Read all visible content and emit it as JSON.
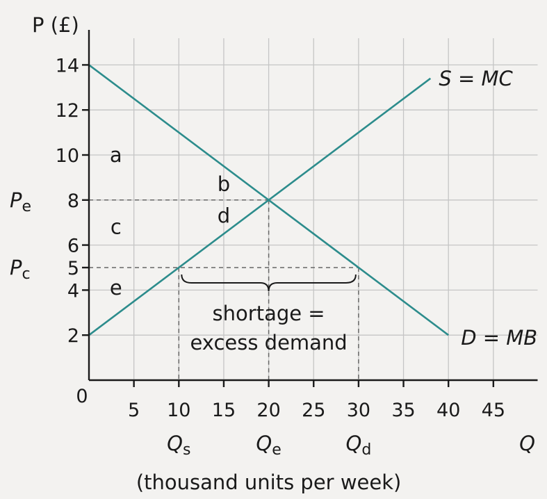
{
  "chart_data": {
    "type": "line",
    "ylabel": "P (£)",
    "xlabel": "(thousand units per week)",
    "x_axis_symbol": "Q",
    "xlim": [
      0,
      50
    ],
    "ylim": [
      0,
      15
    ],
    "x_ticks": [
      0,
      5,
      10,
      15,
      20,
      25,
      30,
      35,
      40,
      45
    ],
    "x_tick_labels": [
      "0",
      "5",
      "10",
      "15",
      "20",
      "25",
      "30",
      "35",
      "40",
      "45"
    ],
    "y_ticks": [
      2,
      4,
      5,
      6,
      8,
      10,
      12,
      14
    ],
    "y_tick_labels": [
      "2",
      "4",
      "5",
      "6",
      "8",
      "10",
      "12",
      "14"
    ],
    "grid": true,
    "series": [
      {
        "name": "S = MC",
        "color": "#2c8c8c",
        "x": [
          0,
          38
        ],
        "y": [
          2,
          13.4
        ]
      },
      {
        "name": "D = MB",
        "color": "#2c8c8c",
        "x": [
          0,
          40
        ],
        "y": [
          14,
          2
        ]
      }
    ],
    "price_markers": [
      {
        "label": "Pe",
        "main": "P",
        "sub": "e",
        "value": 8
      },
      {
        "label": "Pc",
        "main": "P",
        "sub": "c",
        "value": 5
      }
    ],
    "quantity_markers": [
      {
        "label": "Qs",
        "main": "Q",
        "sub": "s",
        "value": 10
      },
      {
        "label": "Qe",
        "main": "Q",
        "sub": "e",
        "value": 20
      },
      {
        "label": "Qd",
        "main": "Q",
        "sub": "d",
        "value": 30
      }
    ],
    "area_labels": [
      {
        "text": "a",
        "x": 3,
        "y": 10
      },
      {
        "text": "b",
        "x": 15,
        "y": 8.7
      },
      {
        "text": "c",
        "x": 3,
        "y": 6.8
      },
      {
        "text": "d",
        "x": 15,
        "y": 7.3
      },
      {
        "text": "e",
        "x": 3,
        "y": 4.1
      }
    ],
    "annotation": {
      "line1": "shortage =",
      "line2": "excess demand",
      "brace_from": 10,
      "brace_to": 30
    }
  }
}
